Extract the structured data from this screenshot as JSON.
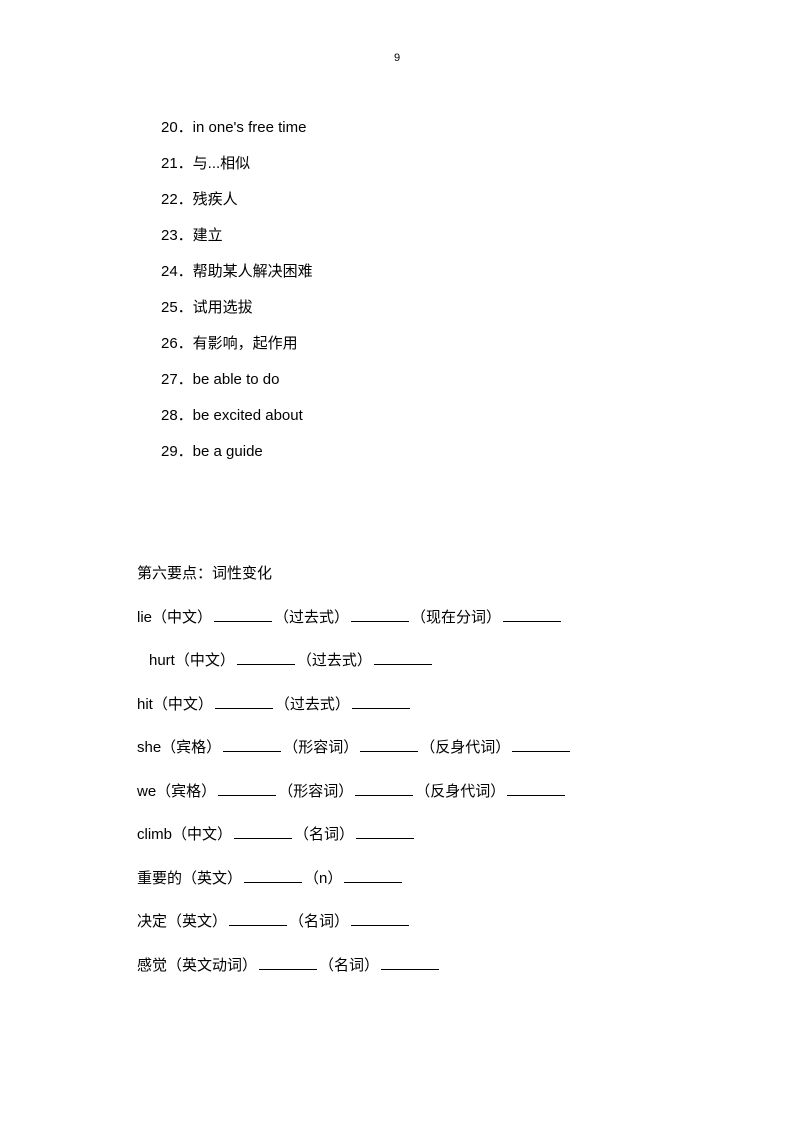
{
  "page_number": "9",
  "list": [
    {
      "num": "20",
      "text": "in one's free time"
    },
    {
      "num": "21",
      "text": "与...相似"
    },
    {
      "num": "22",
      "text": "残疾人"
    },
    {
      "num": "23",
      "text": "建立"
    },
    {
      "num": "24",
      "text": "帮助某人解决困难"
    },
    {
      "num": "25",
      "text": "试用选拔"
    },
    {
      "num": "26",
      "text": "有影响，起作用"
    },
    {
      "num": "27",
      "text": "be able to do"
    },
    {
      "num": "28",
      "text": "be excited about"
    },
    {
      "num": "29",
      "text": "be a guide"
    }
  ],
  "section_title": "第六要点：词性变化",
  "form_lines": [
    {
      "segments": [
        "lie（中文）",
        "blank",
        "（过去式）",
        "blank",
        "（现在分词）",
        "blank"
      ],
      "indent": false
    },
    {
      "segments": [
        "hurt（中文）",
        "blank",
        "（过去式）",
        "blank"
      ],
      "indent": true
    },
    {
      "segments": [
        "hit（中文）",
        "blank",
        "（过去式）",
        "blank"
      ],
      "indent": false
    },
    {
      "segments": [
        "she（宾格）",
        "blank",
        "（形容词）",
        "blank",
        "（反身代词）",
        "blank"
      ],
      "indent": false
    },
    {
      "segments": [
        "we（宾格）",
        "blank",
        "（形容词）",
        "blank",
        "（反身代词）",
        "blank"
      ],
      "indent": false
    },
    {
      "segments": [
        "climb（中文）",
        "blank",
        "（名词）",
        "blank"
      ],
      "indent": false
    },
    {
      "segments": [
        "重要的（英文）",
        "blank",
        "（n）",
        "blank"
      ],
      "indent": false
    },
    {
      "segments": [
        "决定（英文）",
        "blank",
        "（名词）",
        "blank"
      ],
      "indent": false
    },
    {
      "segments": [
        "感觉（英文动词）",
        "blank",
        "（名词）",
        "blank"
      ],
      "indent": false
    }
  ],
  "colors": {
    "background": "#ffffff",
    "text": "#000000",
    "underline": "#000000"
  },
  "typography": {
    "body_fontsize": 15,
    "page_number_fontsize": 11,
    "list_line_height": 2.4,
    "form_line_height": 2.9
  }
}
